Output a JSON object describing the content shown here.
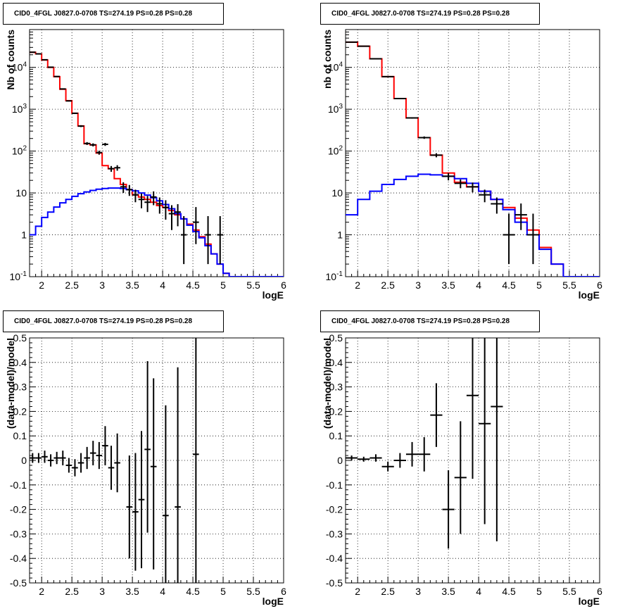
{
  "chart_data": [
    {
      "type": "line",
      "title": "CID0_4FGL J0827.0-0708 TS=274.19 PS=0.28 PS=0.28",
      "xlabel": "logE",
      "ylabel": "Nb of counts",
      "xlim": [
        1.8,
        6.0
      ],
      "ylim": [
        0.1,
        80000
      ],
      "yscale": "log",
      "grid": true,
      "x_ticks": [
        "2",
        "2.5",
        "3",
        "3.5",
        "4",
        "4.5",
        "5",
        "5.5",
        "6"
      ],
      "y_ticks": [
        "10^-1",
        "1",
        "10",
        "10^2",
        "10^3",
        "10^4"
      ],
      "series": [
        {
          "color": "#ff0000",
          "kind": "step",
          "bin_edges": [
            1.8,
            1.9,
            2.0,
            2.1,
            2.2,
            2.3,
            2.4,
            2.5,
            2.6,
            2.7,
            2.8,
            2.9,
            3.0,
            3.1,
            3.2,
            3.3,
            3.4,
            3.5,
            3.6,
            3.7,
            3.8,
            3.9,
            4.0,
            4.1,
            4.2,
            4.3,
            4.4,
            4.5,
            4.6,
            4.7,
            4.8,
            4.9,
            5.0,
            5.1,
            5.2,
            5.3,
            5.4,
            5.5,
            5.6,
            5.7,
            5.8,
            5.9,
            6.0
          ],
          "values": [
            23000,
            21000,
            15000,
            10000,
            6000,
            3000,
            1600,
            800,
            400,
            150,
            140,
            90,
            45,
            38,
            22,
            16,
            12,
            9,
            8,
            7,
            6,
            5,
            4.5,
            3.8,
            3,
            2.4,
            1.8,
            1.3,
            0.9,
            0.6,
            0.35,
            0.2,
            0.12,
            0.1,
            0.1,
            0.1,
            0.1,
            0.1,
            0.1,
            0.1,
            0.1,
            0.1
          ]
        },
        {
          "color": "#0000ff",
          "kind": "step",
          "bin_edges": [
            1.8,
            1.9,
            2.0,
            2.1,
            2.2,
            2.3,
            2.4,
            2.5,
            2.6,
            2.7,
            2.8,
            2.9,
            3.0,
            3.1,
            3.2,
            3.3,
            3.4,
            3.5,
            3.6,
            3.7,
            3.8,
            3.9,
            4.0,
            4.1,
            4.2,
            4.3,
            4.4,
            4.5,
            4.6,
            4.7,
            4.8,
            4.9,
            5.0,
            5.1,
            5.2,
            5.3,
            5.4,
            5.5,
            5.6,
            5.7,
            5.8,
            5.9,
            6.0
          ],
          "values": [
            1.0,
            1.6,
            2.6,
            3.5,
            4.6,
            5.8,
            7.0,
            8.3,
            9.6,
            10.6,
            11.5,
            12.3,
            12.8,
            13.1,
            13.1,
            12.8,
            12.0,
            11.2,
            10.0,
            8.9,
            7.7,
            6.5,
            5.3,
            4.2,
            3.2,
            2.4,
            1.7,
            1.2,
            0.85,
            0.55,
            0.35,
            0.2,
            0.12,
            0.1,
            0.1,
            0.1,
            0.1,
            0.1,
            0.1,
            0.1,
            0.1,
            0.1
          ]
        },
        {
          "color": "#000000",
          "kind": "errorbar",
          "x": [
            1.85,
            1.95,
            2.05,
            2.15,
            2.25,
            2.35,
            2.45,
            2.55,
            2.65,
            2.75,
            2.85,
            2.95,
            3.05,
            3.15,
            3.25,
            3.35,
            3.45,
            3.55,
            3.65,
            3.75,
            3.85,
            3.95,
            4.05,
            4.15,
            4.25,
            4.35,
            4.55,
            4.75,
            4.95
          ],
          "y": [
            23000,
            21000,
            15200,
            10100,
            6050,
            3050,
            1580,
            800,
            395,
            152,
            141,
            92,
            145,
            38,
            40,
            14,
            12,
            9,
            7,
            6,
            8,
            5.5,
            4.5,
            3.2,
            3.5,
            1.0,
            2.0,
            1.0,
            1.0
          ],
          "yerr_low": [
            200,
            200,
            150,
            120,
            90,
            60,
            45,
            30,
            20,
            12,
            12,
            10,
            12,
            6,
            6,
            4,
            3.5,
            3,
            2.7,
            2.5,
            2.9,
            2.3,
            2.2,
            1.9,
            1.9,
            0.8,
            1.4,
            0.8,
            0.8
          ],
          "yerr_high": [
            200,
            200,
            150,
            120,
            90,
            60,
            45,
            30,
            20,
            12,
            12,
            10,
            12,
            6,
            6,
            4,
            3.5,
            3,
            2.7,
            2.5,
            2.9,
            2.3,
            2.2,
            1.9,
            1.9,
            1.8,
            2.6,
            1.8,
            1.8
          ],
          "xerr": 0.05
        }
      ]
    },
    {
      "type": "line",
      "title": "CID0_4FGL J0827.0-0708 TS=274.19 PS=0.28 PS=0.28",
      "xlabel": "logE",
      "ylabel": "nb of counts",
      "xlim": [
        1.8,
        6.0
      ],
      "ylim": [
        0.1,
        80000
      ],
      "yscale": "log",
      "grid": true,
      "x_ticks": [
        "2",
        "2.5",
        "3",
        "3.5",
        "4",
        "4.5",
        "5",
        "5.5",
        "6"
      ],
      "y_ticks": [
        "10^-1",
        "1",
        "10",
        "10^2",
        "10^3",
        "10^4"
      ],
      "series": [
        {
          "color": "#ff0000",
          "kind": "step",
          "bin_edges": [
            1.8,
            2.0,
            2.2,
            2.4,
            2.6,
            2.8,
            3.0,
            3.2,
            3.4,
            3.6,
            3.8,
            4.0,
            4.2,
            4.4,
            4.6,
            4.8,
            5.0,
            5.2,
            5.4,
            5.6,
            5.8,
            6.0
          ],
          "values": [
            40000,
            32000,
            16000,
            6000,
            1800,
            620,
            210,
            80,
            30,
            18,
            14,
            11,
            7,
            4.5,
            2.5,
            1.3,
            0.5,
            0.2,
            0.1,
            0.1,
            0.1
          ]
        },
        {
          "color": "#0000ff",
          "kind": "step",
          "bin_edges": [
            1.8,
            2.0,
            2.2,
            2.4,
            2.6,
            2.8,
            3.0,
            3.2,
            3.4,
            3.6,
            3.8,
            4.0,
            4.2,
            4.4,
            4.6,
            4.8,
            5.0,
            5.2,
            5.4,
            5.6,
            5.8,
            6.0
          ],
          "values": [
            3,
            7,
            11,
            16,
            21,
            25,
            28,
            27,
            25,
            22,
            17,
            11,
            7,
            4,
            2,
            1,
            0.45,
            0.2,
            0.1,
            0.1,
            0.1
          ]
        },
        {
          "color": "#000000",
          "kind": "errorbar",
          "x": [
            1.9,
            2.1,
            2.3,
            2.5,
            2.7,
            2.9,
            3.1,
            3.3,
            3.5,
            3.7,
            3.9,
            4.1,
            4.3,
            4.5,
            4.7,
            4.9
          ],
          "y": [
            40000,
            32000,
            16000,
            6000,
            1800,
            620,
            210,
            80,
            25,
            17,
            14,
            9,
            5.5,
            1.0,
            3.0,
            1.0
          ],
          "yerr_low": [
            200,
            180,
            130,
            80,
            42,
            25,
            14,
            9,
            5,
            4,
            3.7,
            3,
            2.3,
            0.8,
            1.7,
            0.8
          ],
          "yerr_high": [
            200,
            180,
            130,
            80,
            42,
            25,
            14,
            9,
            5,
            4,
            3.7,
            3,
            2.3,
            2.2,
            2.6,
            2.2
          ],
          "xerr": 0.1
        }
      ]
    },
    {
      "type": "scatter",
      "title": "CID0_4FGL J0827.0-0708 TS=274.19 PS=0.28 PS=0.28",
      "xlabel": "logE",
      "ylabel": "(data-model)/model",
      "xlim": [
        1.8,
        6.0
      ],
      "ylim": [
        -0.5,
        0.5
      ],
      "grid": true,
      "x_ticks": [
        "2",
        "2.5",
        "3",
        "3.5",
        "4",
        "4.5",
        "5",
        "5.5",
        "6"
      ],
      "y_ticks": [
        "-0.5",
        "-0.4",
        "-0.3",
        "-0.2",
        "-0.1",
        "0",
        "0.1",
        "0.2",
        "0.3",
        "0.4",
        "0.5"
      ],
      "series": [
        {
          "color": "#000000",
          "kind": "errorbar",
          "x": [
            1.85,
            1.95,
            2.05,
            2.15,
            2.25,
            2.35,
            2.45,
            2.55,
            2.65,
            2.75,
            2.85,
            2.95,
            3.05,
            3.15,
            3.25,
            3.45,
            3.55,
            3.65,
            3.75,
            3.85,
            4.05,
            4.25,
            4.55
          ],
          "y": [
            0.01,
            0.01,
            0.015,
            0.0,
            0.01,
            0.01,
            -0.02,
            -0.03,
            -0.01,
            0.01,
            0.03,
            0.02,
            0.06,
            -0.03,
            -0.01,
            -0.19,
            -0.21,
            -0.16,
            0.045,
            -0.025,
            -0.225,
            -0.19,
            0.025
          ],
          "yerr_low": [
            0.02,
            0.02,
            0.025,
            0.025,
            0.025,
            0.03,
            0.03,
            0.035,
            0.04,
            0.045,
            0.05,
            0.055,
            0.08,
            0.09,
            0.12,
            0.21,
            0.24,
            0.28,
            0.34,
            0.42,
            0.45,
            0.5,
            0.6
          ],
          "yerr_high": [
            0.02,
            0.02,
            0.025,
            0.025,
            0.025,
            0.03,
            0.03,
            0.035,
            0.04,
            0.045,
            0.05,
            0.055,
            0.08,
            0.09,
            0.12,
            0.21,
            0.24,
            0.28,
            0.36,
            0.36,
            0.45,
            0.57,
            0.6
          ],
          "xerr": 0.05
        }
      ]
    },
    {
      "type": "scatter",
      "title": "CID0_4FGL J0827.0-0708 TS=274.19 PS=0.28 PS=0.28",
      "xlabel": "logE",
      "ylabel": "(data-model)/model",
      "xlim": [
        1.8,
        6.0
      ],
      "ylim": [
        -0.5,
        0.5
      ],
      "grid": true,
      "x_ticks": [
        "2",
        "2.5",
        "3",
        "3.5",
        "4",
        "4.5",
        "5",
        "5.5",
        "6"
      ],
      "y_ticks": [
        "-0.5",
        "-0.4",
        "-0.3",
        "-0.2",
        "-0.1",
        "0",
        "0.1",
        "0.2",
        "0.3",
        "0.4",
        "0.5"
      ],
      "series": [
        {
          "color": "#000000",
          "kind": "errorbar",
          "x": [
            1.9,
            2.1,
            2.3,
            2.5,
            2.7,
            2.9,
            3.1,
            3.3,
            3.5,
            3.7,
            3.9,
            4.1,
            4.3
          ],
          "y": [
            0.01,
            0.005,
            0.01,
            -0.025,
            0.0,
            0.025,
            0.025,
            0.185,
            -0.2,
            -0.07,
            0.265,
            0.15,
            0.22
          ],
          "yerr_low": [
            0.01,
            0.01,
            0.015,
            0.02,
            0.03,
            0.05,
            0.07,
            0.13,
            0.16,
            0.23,
            0.34,
            0.41,
            0.55
          ],
          "yerr_high": [
            0.01,
            0.01,
            0.015,
            0.02,
            0.03,
            0.05,
            0.07,
            0.13,
            0.16,
            0.23,
            0.34,
            0.41,
            0.55
          ],
          "xerr": 0.1
        }
      ]
    }
  ]
}
